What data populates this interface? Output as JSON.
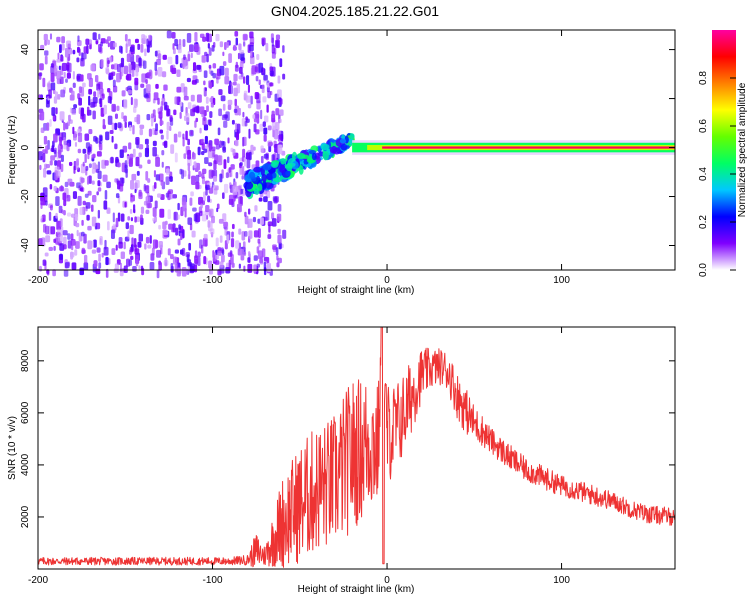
{
  "title": "GN04.2025.185.21.22.G01",
  "chart_data": [
    {
      "type": "heatmap",
      "xlabel": "Height of straight line (km)",
      "ylabel": "Frequency (Hz)",
      "xlim": [
        -200,
        165
      ],
      "ylim": [
        -50,
        48
      ],
      "xticks": [
        -200,
        -100,
        0,
        100
      ],
      "yticks": [
        -40,
        -20,
        0,
        20,
        40
      ],
      "colorbar": {
        "label": "Normalized spectral amplitude",
        "range": [
          0,
          1
        ],
        "ticks": [
          0.0,
          0.2,
          0.4,
          0.6,
          0.8
        ],
        "colormap": [
          "#ffffff",
          "#7f00ff",
          "#0000ff",
          "#00c8ff",
          "#00ff64",
          "#64ff00",
          "#ffff00",
          "#ff8000",
          "#ff0000",
          "#ff00a0"
        ]
      },
      "features": [
        {
          "region": "broadband noise",
          "x_range": [
            -200,
            -66
          ],
          "freq_range": [
            -50,
            48
          ],
          "amplitude": 0.05
        },
        {
          "region": "signal onset",
          "x_range": [
            -80,
            -20
          ],
          "freq_range": [
            -22,
            8
          ],
          "amplitude": 0.45
        },
        {
          "region": "narrow carrier",
          "x_range": [
            -20,
            165
          ],
          "freq_center": 0,
          "freq_width": 3,
          "amplitude": 0.95
        }
      ]
    },
    {
      "type": "line",
      "xlabel": "Height of straight line (km)",
      "ylabel": "SNR (10 * v/v)",
      "xlim": [
        -200,
        165
      ],
      "ylim": [
        0,
        9300
      ],
      "xticks": [
        -200,
        -100,
        0,
        100
      ],
      "yticks": [
        2000,
        4000,
        6000,
        8000
      ],
      "series": [
        {
          "color": "#ee3333",
          "x": [
            -200,
            -180,
            -160,
            -140,
            -120,
            -100,
            -90,
            -80,
            -75,
            -70,
            -60,
            -50,
            -45,
            -40,
            -35,
            -30,
            -25,
            -20,
            -15,
            -10,
            -5,
            -3,
            0,
            5,
            10,
            15,
            20,
            25,
            30,
            35,
            40,
            45,
            50,
            55,
            60,
            70,
            80,
            90,
            100,
            110,
            120,
            130,
            140,
            150,
            165
          ],
          "y": [
            300,
            300,
            300,
            300,
            300,
            300,
            300,
            350,
            700,
            500,
            1800,
            2500,
            2800,
            3100,
            3200,
            3400,
            3900,
            4400,
            4600,
            4900,
            4700,
            9000,
            5200,
            5400,
            6000,
            6800,
            7500,
            7700,
            7800,
            7600,
            6700,
            6100,
            5600,
            5300,
            4900,
            4300,
            3800,
            3500,
            3200,
            3000,
            2800,
            2600,
            2300,
            2100,
            2000
          ],
          "noise_amplitude": [
            150,
            150,
            150,
            150,
            150,
            150,
            150,
            200,
            700,
            400,
            1800,
            2300,
            2400,
            2500,
            2500,
            2600,
            2800,
            3000,
            2800,
            2700,
            2500,
            300,
            2000,
            1800,
            1600,
            1400,
            1000,
            800,
            700,
            800,
            900,
            900,
            700,
            600,
            500,
            500,
            450,
            450,
            400,
            400,
            400,
            350,
            350,
            350,
            350
          ]
        }
      ]
    }
  ]
}
